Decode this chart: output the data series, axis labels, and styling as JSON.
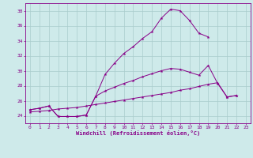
{
  "xlabel": "Windchill (Refroidissement éolien,°C)",
  "background_color": "#ceeaea",
  "line_color": "#880088",
  "grid_color": "#aacccc",
  "x": [
    0,
    1,
    2,
    3,
    4,
    5,
    6,
    7,
    8,
    9,
    10,
    11,
    12,
    13,
    14,
    15,
    16,
    17,
    18,
    19,
    20,
    21,
    22,
    23
  ],
  "line1": [
    24.8,
    25.0,
    25.3,
    23.9,
    23.9,
    23.9,
    24.1,
    26.6,
    29.5,
    31.0,
    32.3,
    33.2,
    34.3,
    35.2,
    37.0,
    38.2,
    38.0,
    36.7,
    35.0,
    34.5,
    null,
    null,
    null,
    null
  ],
  "line2": [
    24.8,
    25.0,
    25.3,
    23.9,
    23.9,
    23.9,
    24.1,
    26.6,
    27.3,
    27.8,
    28.3,
    28.7,
    29.2,
    29.6,
    30.0,
    30.3,
    30.2,
    29.8,
    29.4,
    30.7,
    28.3,
    26.5,
    26.7,
    null
  ],
  "line3": [
    24.5,
    24.6,
    24.7,
    24.9,
    25.0,
    25.1,
    25.3,
    25.5,
    25.7,
    25.9,
    26.1,
    26.3,
    26.5,
    26.7,
    26.9,
    27.1,
    27.4,
    27.6,
    27.9,
    28.2,
    28.4,
    26.5,
    26.7,
    null
  ],
  "ylim": [
    23,
    39
  ],
  "xlim": [
    -0.5,
    23.5
  ],
  "yticks": [
    24,
    26,
    28,
    30,
    32,
    34,
    36,
    38
  ],
  "xticks": [
    0,
    1,
    2,
    3,
    4,
    5,
    6,
    7,
    8,
    9,
    10,
    11,
    12,
    13,
    14,
    15,
    16,
    17,
    18,
    19,
    20,
    21,
    22,
    23
  ]
}
